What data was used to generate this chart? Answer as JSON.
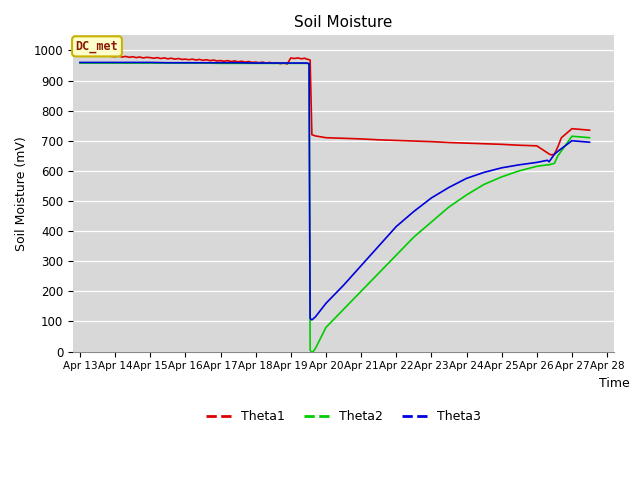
{
  "title": "Soil Moisture",
  "xlabel": "Time",
  "ylabel": "Soil Moisture (mV)",
  "background_color": "#d8d8d8",
  "fig_color": "#ffffff",
  "ylim": [
    0,
    1050
  ],
  "yticks": [
    0,
    100,
    200,
    300,
    400,
    500,
    600,
    700,
    800,
    900,
    1000
  ],
  "x_tick_labels": [
    "Apr 13",
    "Apr 14",
    "Apr 15",
    "Apr 16",
    "Apr 17",
    "Apr 18",
    "Apr 19",
    "Apr 20",
    "Apr 21",
    "Apr 22",
    "Apr 23",
    "Apr 24",
    "Apr 25",
    "Apr 26",
    "Apr 27",
    "Apr 28"
  ],
  "annotation_text": "DC_met",
  "annotation_color": "#8B1A00",
  "annotation_bg": "#ffffcc",
  "annotation_border": "#c8b400",
  "series": [
    {
      "name": "Theta1",
      "color": "#dd0000",
      "x": [
        0.0,
        0.1,
        0.2,
        0.3,
        0.4,
        0.5,
        0.6,
        0.7,
        0.8,
        0.9,
        1.0,
        1.1,
        1.2,
        1.3,
        1.4,
        1.5,
        1.6,
        1.7,
        1.8,
        1.9,
        2.0,
        2.1,
        2.2,
        2.3,
        2.4,
        2.5,
        2.6,
        2.7,
        2.8,
        2.9,
        3.0,
        3.1,
        3.2,
        3.3,
        3.4,
        3.5,
        3.6,
        3.7,
        3.8,
        3.9,
        4.0,
        4.1,
        4.2,
        4.3,
        4.4,
        4.5,
        4.6,
        4.7,
        4.8,
        4.9,
        5.0,
        5.1,
        5.2,
        5.3,
        5.4,
        5.5,
        5.6,
        5.7,
        5.8,
        5.9,
        6.0,
        6.1,
        6.2,
        6.3,
        6.4,
        6.45,
        6.5,
        6.52,
        6.55,
        6.6,
        6.7,
        6.8,
        6.9,
        7.0,
        7.5,
        8.0,
        8.5,
        9.0,
        9.5,
        10.0,
        10.5,
        11.0,
        11.5,
        12.0,
        12.5,
        13.0,
        13.3,
        13.35,
        13.4,
        13.5,
        13.6,
        13.7,
        14.0,
        14.5
      ],
      "y": [
        985,
        984,
        986,
        983,
        985,
        982,
        984,
        981,
        983,
        980,
        979,
        981,
        978,
        980,
        977,
        979,
        976,
        978,
        975,
        977,
        976,
        974,
        976,
        973,
        975,
        972,
        974,
        971,
        973,
        970,
        971,
        969,
        971,
        968,
        970,
        967,
        969,
        966,
        968,
        965,
        966,
        964,
        966,
        963,
        965,
        962,
        964,
        961,
        963,
        960,
        961,
        959,
        961,
        958,
        960,
        957,
        959,
        956,
        958,
        955,
        975,
        973,
        975,
        972,
        974,
        971,
        970,
        969,
        968,
        720,
        716,
        714,
        712,
        710,
        708,
        706,
        703,
        701,
        699,
        697,
        694,
        692,
        690,
        688,
        685,
        683,
        660,
        656,
        653,
        655,
        680,
        710,
        740,
        735
      ]
    },
    {
      "name": "Theta2",
      "color": "#00cc00",
      "x": [
        0.0,
        0.5,
        1.0,
        1.5,
        2.0,
        2.5,
        3.0,
        3.5,
        4.0,
        4.5,
        5.0,
        5.5,
        6.0,
        6.3,
        6.45,
        6.5,
        6.52,
        6.55,
        6.6,
        6.7,
        7.0,
        7.5,
        8.0,
        8.5,
        9.0,
        9.5,
        10.0,
        10.5,
        11.0,
        11.5,
        12.0,
        12.5,
        13.0,
        13.3,
        13.35,
        13.5,
        13.6,
        14.0,
        14.5
      ],
      "y": [
        958,
        958,
        958,
        958,
        958,
        958,
        958,
        958,
        957,
        957,
        957,
        957,
        957,
        957,
        957,
        956,
        955,
        5,
        -5,
        10,
        80,
        140,
        200,
        260,
        320,
        380,
        430,
        480,
        520,
        555,
        580,
        600,
        615,
        620,
        620,
        625,
        650,
        715,
        710
      ]
    },
    {
      "name": "Theta3",
      "color": "#0000dd",
      "x": [
        0.0,
        0.5,
        1.0,
        1.5,
        2.0,
        2.5,
        3.0,
        3.5,
        4.0,
        4.5,
        5.0,
        5.5,
        6.0,
        6.3,
        6.45,
        6.5,
        6.52,
        6.55,
        6.6,
        6.7,
        7.0,
        7.5,
        8.0,
        8.5,
        9.0,
        9.5,
        10.0,
        10.5,
        11.0,
        11.5,
        12.0,
        12.5,
        13.0,
        13.3,
        13.35,
        13.5,
        13.6,
        14.0,
        14.5
      ],
      "y": [
        960,
        960,
        960,
        960,
        960,
        959,
        959,
        959,
        959,
        959,
        958,
        958,
        958,
        958,
        958,
        957,
        956,
        110,
        105,
        115,
        160,
        220,
        285,
        350,
        415,
        465,
        510,
        545,
        575,
        595,
        610,
        620,
        628,
        635,
        630,
        655,
        665,
        700,
        695
      ]
    }
  ]
}
